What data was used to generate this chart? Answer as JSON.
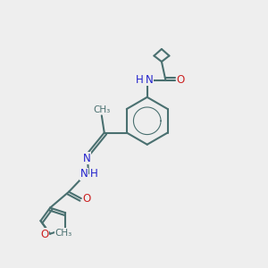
{
  "bg_color": "#eeeeee",
  "bond_color": "#4a7070",
  "N_color": "#2222cc",
  "O_color": "#cc2222",
  "line_width": 1.5,
  "font_size": 8.5,
  "figsize": [
    3.0,
    3.0
  ],
  "dpi": 100,
  "xlim": [
    0,
    10
  ],
  "ylim": [
    0,
    10
  ]
}
